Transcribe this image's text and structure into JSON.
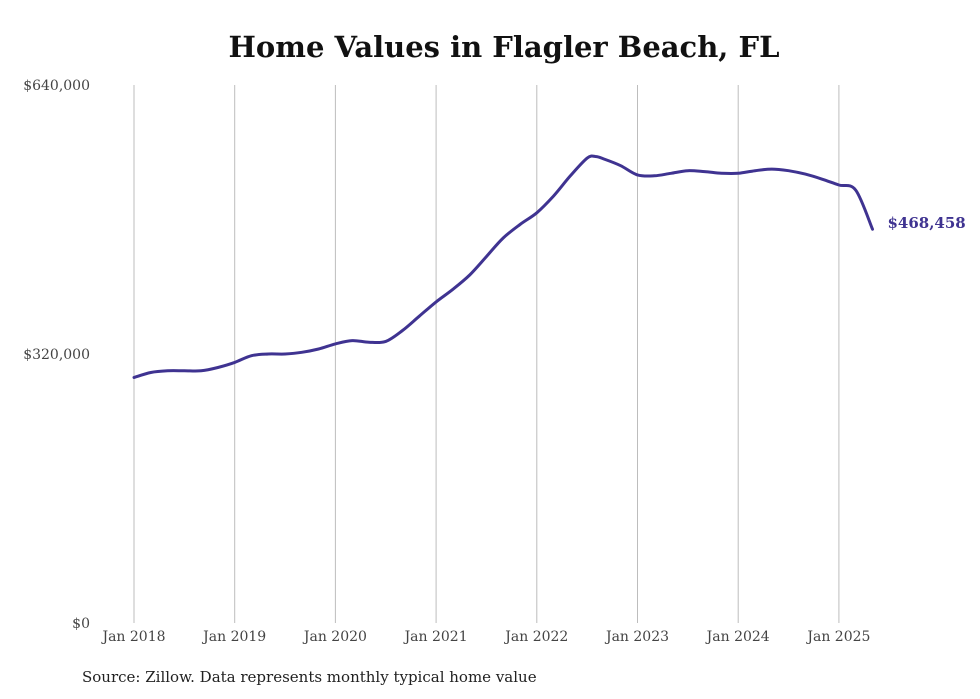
{
  "title": "Home Values in Flagler Beach, FL",
  "source": "Source: Zillow. Data represents monthly typical home value",
  "colors": {
    "line": "#3f3391",
    "grid": "#bdbdbd"
  },
  "chart_data": {
    "type": "line",
    "title": "Home Values in Flagler Beach, FL",
    "xlabel": "",
    "ylabel": "",
    "ylim": [
      0,
      640000
    ],
    "xlim": [
      "2018-01",
      "2025-05"
    ],
    "yticks": [
      0,
      320000,
      640000
    ],
    "ytick_labels": [
      "$0",
      "$320,000",
      "$640,000"
    ],
    "xticks": [
      "2018-01",
      "2019-01",
      "2020-01",
      "2021-01",
      "2022-01",
      "2023-01",
      "2024-01",
      "2025-01"
    ],
    "xtick_labels": [
      "Jan 2018",
      "Jan 2019",
      "Jan 2020",
      "Jan 2021",
      "Jan 2022",
      "Jan 2023",
      "Jan 2024",
      "Jan 2025"
    ],
    "grid": "vertical",
    "end_label": "$468,458",
    "series": [
      {
        "x": [
          "2018-01",
          "2018-03",
          "2018-05",
          "2018-07",
          "2018-09",
          "2018-11",
          "2019-01",
          "2019-03",
          "2019-05",
          "2019-07",
          "2019-09",
          "2019-11",
          "2020-01",
          "2020-03",
          "2020-05",
          "2020-07",
          "2020-09",
          "2020-11",
          "2021-01",
          "2021-03",
          "2021-05",
          "2021-07",
          "2021-09",
          "2021-11",
          "2022-01",
          "2022-03",
          "2022-05",
          "2022-07",
          "2022-08",
          "2022-09",
          "2022-11",
          "2023-01",
          "2023-03",
          "2023-05",
          "2023-07",
          "2023-09",
          "2023-11",
          "2024-01",
          "2024-03",
          "2024-05",
          "2024-07",
          "2024-09",
          "2024-11",
          "2025-01",
          "2025-03",
          "2025-05"
        ],
        "values": [
          292000,
          298000,
          300000,
          300000,
          300000,
          304000,
          310000,
          318000,
          320000,
          320000,
          322000,
          326000,
          332000,
          336000,
          334000,
          335000,
          348000,
          365000,
          382000,
          397000,
          414000,
          436000,
          458000,
          474000,
          488000,
          508000,
          532000,
          553000,
          555000,
          552000,
          544000,
          533000,
          532000,
          535000,
          538000,
          537000,
          535000,
          535000,
          538000,
          540000,
          538000,
          534000,
          528000,
          521000,
          515000,
          468458
        ]
      }
    ]
  }
}
